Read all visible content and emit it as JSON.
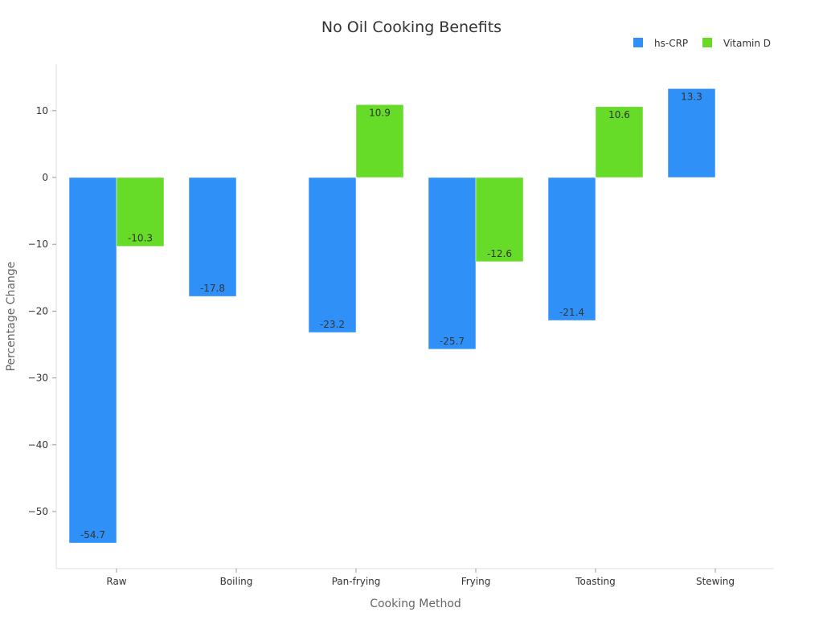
{
  "chart_data": {
    "type": "bar",
    "title": "No Oil Cooking Benefits",
    "xlabel": "Cooking Method",
    "ylabel": "Percentage Change",
    "categories": [
      "Raw",
      "Boiling",
      "Pan-frying",
      "Frying",
      "Toasting",
      "Stewing"
    ],
    "series": [
      {
        "name": "hs-CRP",
        "color": "#2f91f8",
        "values": [
          -54.7,
          -17.8,
          -23.2,
          -25.7,
          -21.4,
          13.3
        ]
      },
      {
        "name": "Vitamin D",
        "color": "#66db28",
        "values": [
          -10.3,
          null,
          10.9,
          -12.6,
          10.6,
          null
        ]
      }
    ],
    "ylim": [
      -58.5,
      17
    ],
    "yticks": [
      10,
      0,
      -10,
      -20,
      -30,
      -40,
      -50
    ],
    "grid": false,
    "legend": "top-right"
  }
}
